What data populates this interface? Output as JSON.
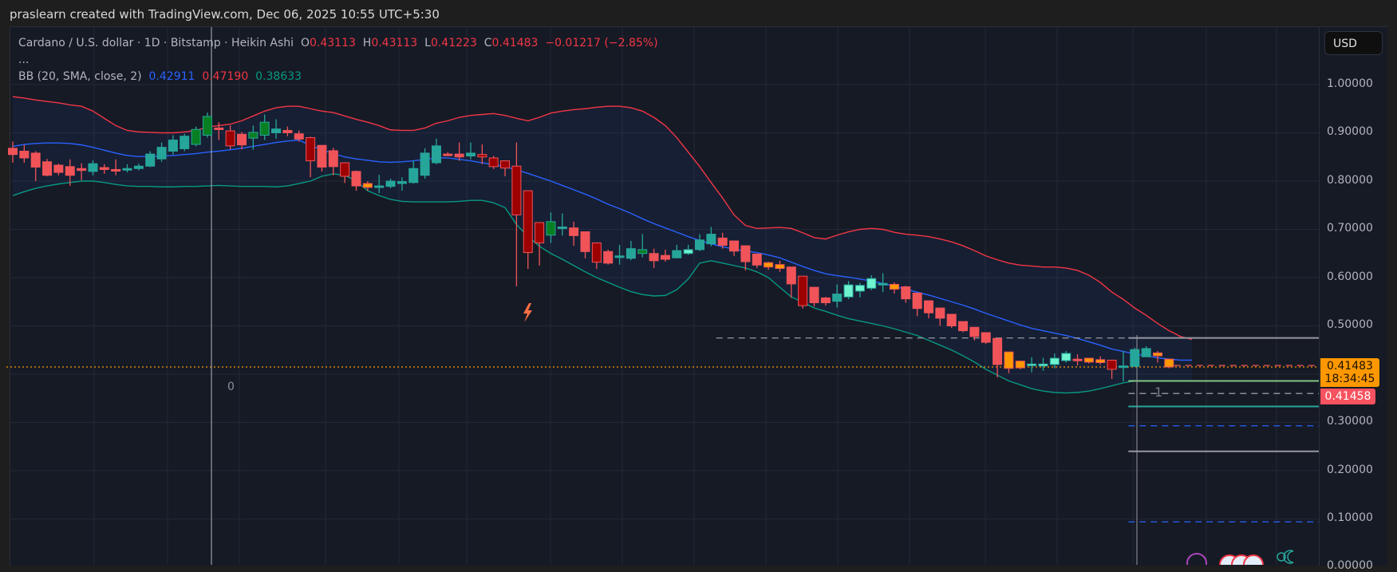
{
  "header": {
    "credit": "praslearn created with TradingView.com, Dec 06, 2025 10:55 UTC+5:30"
  },
  "legend": {
    "symbol_line": "Cardano / U.S. dollar · 1D · Bitstamp · Heikin Ashi",
    "o_label": "O",
    "o_value": "0.43113",
    "h_label": "H",
    "h_value": "0.43113",
    "l_label": "L",
    "l_value": "0.41223",
    "c_label": "C",
    "c_value": "0.41483",
    "change": "−0.01217 (−2.85%)",
    "more": "...",
    "bb_label": "BB (20, SMA, close, 2)",
    "bb_basis": "0.42911",
    "bb_upper": "0.47190",
    "bb_lower": "0.38633"
  },
  "price_axis": {
    "currency_button": "USD",
    "ticks": [
      "1.00000",
      "0.90000",
      "0.80000",
      "0.70000",
      "0.60000",
      "0.50000",
      "0.30000",
      "0.20000",
      "0.10000",
      "0.00000"
    ],
    "last_price": "0.41483",
    "countdown": "18:34:45",
    "bid_price": "0.41458"
  },
  "annotations": {
    "zero_label": "0",
    "bar_marker": "1"
  },
  "colors": {
    "background": "#161a25",
    "grid": "#242837",
    "up": "#26a69a",
    "up_strong": "#087f23",
    "up_light": "#70f4d0",
    "down": "#f05459",
    "down_strong": "#9c0000",
    "neutral": "#ff9800",
    "bb_basis": "#2962ff",
    "bb_upper": "#f23645",
    "bb_lower": "#089981"
  },
  "chart_data": {
    "type": "candlestick",
    "title": "Cardano / U.S. dollar · 1D · Bitstamp · Heikin Ashi",
    "xlabel": "",
    "ylabel": "USD",
    "ylim": [
      0.0,
      1.05
    ],
    "grid": true,
    "indicator": "Bollinger Bands (20, SMA, close, 2)",
    "candles": [
      {
        "o": 0.868,
        "h": 0.882,
        "l": 0.838,
        "c": 0.855,
        "k": "down"
      },
      {
        "o": 0.862,
        "h": 0.875,
        "l": 0.838,
        "c": 0.848,
        "k": "down"
      },
      {
        "o": 0.858,
        "h": 0.862,
        "l": 0.8,
        "c": 0.829,
        "k": "down"
      },
      {
        "o": 0.84,
        "h": 0.846,
        "l": 0.81,
        "c": 0.812,
        "k": "down"
      },
      {
        "o": 0.833,
        "h": 0.836,
        "l": 0.812,
        "c": 0.818,
        "k": "down"
      },
      {
        "o": 0.83,
        "h": 0.845,
        "l": 0.79,
        "c": 0.812,
        "k": "down"
      },
      {
        "o": 0.826,
        "h": 0.837,
        "l": 0.802,
        "c": 0.822,
        "k": "down"
      },
      {
        "o": 0.82,
        "h": 0.843,
        "l": 0.812,
        "c": 0.836,
        "k": "up"
      },
      {
        "o": 0.828,
        "h": 0.835,
        "l": 0.815,
        "c": 0.824,
        "k": "down"
      },
      {
        "o": 0.824,
        "h": 0.845,
        "l": 0.812,
        "c": 0.824,
        "k": "down"
      },
      {
        "o": 0.824,
        "h": 0.835,
        "l": 0.818,
        "c": 0.826,
        "k": "up"
      },
      {
        "o": 0.826,
        "h": 0.836,
        "l": 0.822,
        "c": 0.831,
        "k": "up"
      },
      {
        "o": 0.831,
        "h": 0.862,
        "l": 0.829,
        "c": 0.856,
        "k": "up"
      },
      {
        "o": 0.846,
        "h": 0.88,
        "l": 0.84,
        "c": 0.87,
        "k": "up"
      },
      {
        "o": 0.862,
        "h": 0.895,
        "l": 0.855,
        "c": 0.885,
        "k": "up"
      },
      {
        "o": 0.867,
        "h": 0.898,
        "l": 0.862,
        "c": 0.893,
        "k": "up"
      },
      {
        "o": 0.876,
        "h": 0.913,
        "l": 0.872,
        "c": 0.907,
        "k": "up_strong"
      },
      {
        "o": 0.895,
        "h": 0.942,
        "l": 0.89,
        "c": 0.934,
        "k": "up_strong"
      },
      {
        "o": 0.91,
        "h": 0.922,
        "l": 0.885,
        "c": 0.907,
        "k": "down"
      },
      {
        "o": 0.904,
        "h": 0.915,
        "l": 0.866,
        "c": 0.873,
        "k": "down_strong"
      },
      {
        "o": 0.897,
        "h": 0.902,
        "l": 0.866,
        "c": 0.875,
        "k": "down"
      },
      {
        "o": 0.889,
        "h": 0.915,
        "l": 0.865,
        "c": 0.901,
        "k": "up_strong"
      },
      {
        "o": 0.895,
        "h": 0.938,
        "l": 0.885,
        "c": 0.922,
        "k": "up_strong"
      },
      {
        "o": 0.9,
        "h": 0.928,
        "l": 0.888,
        "c": 0.908,
        "k": "up"
      },
      {
        "o": 0.905,
        "h": 0.913,
        "l": 0.893,
        "c": 0.9,
        "k": "down"
      },
      {
        "o": 0.898,
        "h": 0.905,
        "l": 0.882,
        "c": 0.887,
        "k": "down"
      },
      {
        "o": 0.89,
        "h": 0.892,
        "l": 0.808,
        "c": 0.842,
        "k": "down_strong"
      },
      {
        "o": 0.874,
        "h": 0.874,
        "l": 0.82,
        "c": 0.829,
        "k": "down"
      },
      {
        "o": 0.863,
        "h": 0.869,
        "l": 0.812,
        "c": 0.83,
        "k": "down"
      },
      {
        "o": 0.838,
        "h": 0.838,
        "l": 0.796,
        "c": 0.81,
        "k": "down_strong"
      },
      {
        "o": 0.82,
        "h": 0.822,
        "l": 0.78,
        "c": 0.79,
        "k": "down"
      },
      {
        "o": 0.795,
        "h": 0.8,
        "l": 0.78,
        "c": 0.787,
        "k": "neutral"
      },
      {
        "o": 0.787,
        "h": 0.813,
        "l": 0.775,
        "c": 0.79,
        "k": "up"
      },
      {
        "o": 0.789,
        "h": 0.805,
        "l": 0.785,
        "c": 0.8,
        "k": "up"
      },
      {
        "o": 0.795,
        "h": 0.808,
        "l": 0.78,
        "c": 0.799,
        "k": "up"
      },
      {
        "o": 0.797,
        "h": 0.842,
        "l": 0.795,
        "c": 0.826,
        "k": "up"
      },
      {
        "o": 0.812,
        "h": 0.868,
        "l": 0.805,
        "c": 0.858,
        "k": "up"
      },
      {
        "o": 0.838,
        "h": 0.888,
        "l": 0.835,
        "c": 0.873,
        "k": "up"
      },
      {
        "o": 0.856,
        "h": 0.86,
        "l": 0.855,
        "c": 0.856,
        "k": "down"
      },
      {
        "o": 0.856,
        "h": 0.88,
        "l": 0.842,
        "c": 0.85,
        "k": "down"
      },
      {
        "o": 0.858,
        "h": 0.88,
        "l": 0.845,
        "c": 0.852,
        "k": "up"
      },
      {
        "o": 0.855,
        "h": 0.876,
        "l": 0.835,
        "c": 0.85,
        "k": "down_strong"
      },
      {
        "o": 0.848,
        "h": 0.852,
        "l": 0.825,
        "c": 0.83,
        "k": "down_strong"
      },
      {
        "o": 0.842,
        "h": 0.842,
        "l": 0.81,
        "c": 0.827,
        "k": "down_strong"
      },
      {
        "o": 0.831,
        "h": 0.88,
        "l": 0.582,
        "c": 0.73,
        "k": "down_strong"
      },
      {
        "o": 0.78,
        "h": 0.78,
        "l": 0.618,
        "c": 0.652,
        "k": "down_strong"
      },
      {
        "o": 0.714,
        "h": 0.714,
        "l": 0.625,
        "c": 0.672,
        "k": "down_strong"
      },
      {
        "o": 0.688,
        "h": 0.735,
        "l": 0.672,
        "c": 0.716,
        "k": "up_strong"
      },
      {
        "o": 0.705,
        "h": 0.733,
        "l": 0.687,
        "c": 0.702,
        "k": "up"
      },
      {
        "o": 0.703,
        "h": 0.716,
        "l": 0.666,
        "c": 0.687,
        "k": "down"
      },
      {
        "o": 0.695,
        "h": 0.695,
        "l": 0.64,
        "c": 0.654,
        "k": "down"
      },
      {
        "o": 0.672,
        "h": 0.672,
        "l": 0.618,
        "c": 0.632,
        "k": "down_strong"
      },
      {
        "o": 0.654,
        "h": 0.658,
        "l": 0.627,
        "c": 0.63,
        "k": "down"
      },
      {
        "o": 0.645,
        "h": 0.668,
        "l": 0.627,
        "c": 0.645,
        "k": "up"
      },
      {
        "o": 0.64,
        "h": 0.676,
        "l": 0.636,
        "c": 0.66,
        "k": "up"
      },
      {
        "o": 0.65,
        "h": 0.69,
        "l": 0.642,
        "c": 0.658,
        "k": "up_strong"
      },
      {
        "o": 0.65,
        "h": 0.66,
        "l": 0.62,
        "c": 0.635,
        "k": "down"
      },
      {
        "o": 0.646,
        "h": 0.658,
        "l": 0.633,
        "c": 0.638,
        "k": "down"
      },
      {
        "o": 0.641,
        "h": 0.668,
        "l": 0.64,
        "c": 0.656,
        "k": "up"
      },
      {
        "o": 0.65,
        "h": 0.668,
        "l": 0.647,
        "c": 0.658,
        "k": "up_light"
      },
      {
        "o": 0.658,
        "h": 0.69,
        "l": 0.655,
        "c": 0.678,
        "k": "up"
      },
      {
        "o": 0.67,
        "h": 0.705,
        "l": 0.665,
        "c": 0.69,
        "k": "up"
      },
      {
        "o": 0.682,
        "h": 0.693,
        "l": 0.66,
        "c": 0.667,
        "k": "down"
      },
      {
        "o": 0.676,
        "h": 0.676,
        "l": 0.645,
        "c": 0.655,
        "k": "down"
      },
      {
        "o": 0.666,
        "h": 0.666,
        "l": 0.615,
        "c": 0.633,
        "k": "down"
      },
      {
        "o": 0.649,
        "h": 0.649,
        "l": 0.62,
        "c": 0.626,
        "k": "down"
      },
      {
        "o": 0.631,
        "h": 0.633,
        "l": 0.616,
        "c": 0.622,
        "k": "neutral"
      },
      {
        "o": 0.627,
        "h": 0.635,
        "l": 0.612,
        "c": 0.619,
        "k": "neutral"
      },
      {
        "o": 0.622,
        "h": 0.622,
        "l": 0.558,
        "c": 0.587,
        "k": "down"
      },
      {
        "o": 0.603,
        "h": 0.603,
        "l": 0.536,
        "c": 0.542,
        "k": "down_strong"
      },
      {
        "o": 0.58,
        "h": 0.58,
        "l": 0.54,
        "c": 0.548,
        "k": "down"
      },
      {
        "o": 0.558,
        "h": 0.56,
        "l": 0.542,
        "c": 0.548,
        "k": "down"
      },
      {
        "o": 0.551,
        "h": 0.586,
        "l": 0.538,
        "c": 0.566,
        "k": "up"
      },
      {
        "o": 0.56,
        "h": 0.593,
        "l": 0.555,
        "c": 0.585,
        "k": "up_light"
      },
      {
        "o": 0.572,
        "h": 0.589,
        "l": 0.559,
        "c": 0.584,
        "k": "up_light"
      },
      {
        "o": 0.578,
        "h": 0.605,
        "l": 0.574,
        "c": 0.598,
        "k": "up_light"
      },
      {
        "o": 0.588,
        "h": 0.609,
        "l": 0.57,
        "c": 0.588,
        "k": "up"
      },
      {
        "o": 0.586,
        "h": 0.59,
        "l": 0.567,
        "c": 0.576,
        "k": "neutral"
      },
      {
        "o": 0.581,
        "h": 0.583,
        "l": 0.548,
        "c": 0.556,
        "k": "down"
      },
      {
        "o": 0.568,
        "h": 0.568,
        "l": 0.52,
        "c": 0.536,
        "k": "down"
      },
      {
        "o": 0.552,
        "h": 0.552,
        "l": 0.516,
        "c": 0.527,
        "k": "down"
      },
      {
        "o": 0.537,
        "h": 0.537,
        "l": 0.5,
        "c": 0.516,
        "k": "down"
      },
      {
        "o": 0.524,
        "h": 0.524,
        "l": 0.496,
        "c": 0.5,
        "k": "down"
      },
      {
        "o": 0.509,
        "h": 0.509,
        "l": 0.487,
        "c": 0.49,
        "k": "down"
      },
      {
        "o": 0.497,
        "h": 0.497,
        "l": 0.47,
        "c": 0.478,
        "k": "down"
      },
      {
        "o": 0.486,
        "h": 0.486,
        "l": 0.463,
        "c": 0.466,
        "k": "down"
      },
      {
        "o": 0.474,
        "h": 0.474,
        "l": 0.393,
        "c": 0.42,
        "k": "down"
      },
      {
        "o": 0.446,
        "h": 0.446,
        "l": 0.402,
        "c": 0.412,
        "k": "neutral"
      },
      {
        "o": 0.427,
        "h": 0.428,
        "l": 0.41,
        "c": 0.413,
        "k": "neutral"
      },
      {
        "o": 0.419,
        "h": 0.435,
        "l": 0.404,
        "c": 0.421,
        "k": "up_light"
      },
      {
        "o": 0.417,
        "h": 0.434,
        "l": 0.407,
        "c": 0.421,
        "k": "up_light"
      },
      {
        "o": 0.42,
        "h": 0.443,
        "l": 0.412,
        "c": 0.433,
        "k": "up_light"
      },
      {
        "o": 0.428,
        "h": 0.448,
        "l": 0.424,
        "c": 0.443,
        "k": "up_light"
      },
      {
        "o": 0.431,
        "h": 0.441,
        "l": 0.418,
        "c": 0.429,
        "k": "down"
      },
      {
        "o": 0.433,
        "h": 0.433,
        "l": 0.422,
        "c": 0.425,
        "k": "neutral"
      },
      {
        "o": 0.43,
        "h": 0.437,
        "l": 0.42,
        "c": 0.424,
        "k": "neutral"
      },
      {
        "o": 0.429,
        "h": 0.429,
        "l": 0.39,
        "c": 0.41,
        "k": "down_strong"
      },
      {
        "o": 0.417,
        "h": 0.448,
        "l": 0.385,
        "c": 0.417,
        "k": "up"
      },
      {
        "o": 0.416,
        "h": 0.455,
        "l": 0.416,
        "c": 0.451,
        "k": "up"
      },
      {
        "o": 0.436,
        "h": 0.458,
        "l": 0.436,
        "c": 0.453,
        "k": "up"
      },
      {
        "o": 0.444,
        "h": 0.448,
        "l": 0.424,
        "c": 0.438,
        "k": "neutral"
      },
      {
        "o": 0.43113,
        "h": 0.43113,
        "l": 0.41223,
        "c": 0.41483,
        "k": "neutral"
      }
    ],
    "bb_basis": [
      0.872,
      0.876,
      0.878,
      0.879,
      0.879,
      0.878,
      0.875,
      0.87,
      0.864,
      0.858,
      0.853,
      0.851,
      0.851,
      0.852,
      0.853,
      0.855,
      0.857,
      0.86,
      0.862,
      0.865,
      0.868,
      0.872,
      0.876,
      0.88,
      0.883,
      0.885,
      0.874,
      0.865,
      0.857,
      0.85,
      0.846,
      0.843,
      0.84,
      0.839,
      0.84,
      0.842,
      0.845,
      0.848,
      0.848,
      0.845,
      0.842,
      0.838,
      0.834,
      0.83,
      0.823,
      0.816,
      0.808,
      0.8,
      0.791,
      0.782,
      0.773,
      0.763,
      0.752,
      0.743,
      0.733,
      0.722,
      0.712,
      0.703,
      0.694,
      0.685,
      0.677,
      0.67,
      0.664,
      0.659,
      0.655,
      0.652,
      0.647,
      0.641,
      0.632,
      0.623,
      0.615,
      0.608,
      0.604,
      0.601,
      0.597,
      0.593,
      0.588,
      0.582,
      0.576,
      0.57,
      0.564,
      0.557,
      0.55,
      0.543,
      0.535,
      0.526,
      0.518,
      0.51,
      0.502,
      0.495,
      0.49,
      0.485,
      0.48,
      0.474,
      0.467,
      0.46,
      0.452,
      0.447,
      0.442,
      0.438,
      0.434,
      0.431,
      0.429,
      0.42911
    ],
    "bb_upper": [
      0.975,
      0.972,
      0.968,
      0.965,
      0.962,
      0.958,
      0.955,
      0.945,
      0.93,
      0.915,
      0.905,
      0.902,
      0.901,
      0.9,
      0.9,
      0.902,
      0.905,
      0.912,
      0.915,
      0.918,
      0.925,
      0.935,
      0.945,
      0.952,
      0.955,
      0.955,
      0.95,
      0.945,
      0.942,
      0.935,
      0.928,
      0.922,
      0.915,
      0.906,
      0.905,
      0.905,
      0.91,
      0.92,
      0.925,
      0.932,
      0.936,
      0.938,
      0.94,
      0.936,
      0.93,
      0.925,
      0.932,
      0.941,
      0.945,
      0.948,
      0.95,
      0.953,
      0.955,
      0.955,
      0.952,
      0.945,
      0.932,
      0.915,
      0.89,
      0.86,
      0.83,
      0.797,
      0.765,
      0.73,
      0.708,
      0.702,
      0.703,
      0.704,
      0.702,
      0.693,
      0.683,
      0.68,
      0.688,
      0.695,
      0.7,
      0.702,
      0.7,
      0.694,
      0.69,
      0.688,
      0.685,
      0.68,
      0.674,
      0.666,
      0.656,
      0.645,
      0.637,
      0.63,
      0.626,
      0.624,
      0.622,
      0.622,
      0.62,
      0.615,
      0.605,
      0.59,
      0.57,
      0.555,
      0.537,
      0.522,
      0.505,
      0.49,
      0.478,
      0.4719
    ],
    "bb_lower": [
      0.77,
      0.778,
      0.785,
      0.79,
      0.794,
      0.797,
      0.8,
      0.8,
      0.797,
      0.793,
      0.79,
      0.789,
      0.789,
      0.788,
      0.788,
      0.789,
      0.789,
      0.79,
      0.791,
      0.79,
      0.789,
      0.789,
      0.789,
      0.788,
      0.79,
      0.795,
      0.8,
      0.81,
      0.815,
      0.812,
      0.8,
      0.78,
      0.77,
      0.762,
      0.758,
      0.757,
      0.757,
      0.757,
      0.757,
      0.758,
      0.76,
      0.76,
      0.755,
      0.745,
      0.71,
      0.685,
      0.665,
      0.65,
      0.638,
      0.625,
      0.612,
      0.6,
      0.59,
      0.58,
      0.571,
      0.565,
      0.562,
      0.563,
      0.575,
      0.597,
      0.63,
      0.635,
      0.63,
      0.625,
      0.62,
      0.612,
      0.6,
      0.58,
      0.56,
      0.549,
      0.537,
      0.53,
      0.522,
      0.515,
      0.51,
      0.505,
      0.5,
      0.494,
      0.487,
      0.48,
      0.47,
      0.46,
      0.45,
      0.438,
      0.425,
      0.41,
      0.398,
      0.386,
      0.378,
      0.37,
      0.365,
      0.362,
      0.361,
      0.362,
      0.365,
      0.37,
      0.376,
      0.382,
      0.386,
      0.386,
      0.386,
      0.386,
      0.386,
      0.38633
    ],
    "price_lines": [
      {
        "price": 0.475,
        "style": "dashed",
        "color": "#9598a1",
        "from_index": 62
      },
      {
        "price": 0.475,
        "style": "solid",
        "color": "#9598a1",
        "from_index": 98
      },
      {
        "price": 0.418,
        "style": "dashed",
        "color": "#f05459",
        "from_index": 102
      },
      {
        "price": 0.41483,
        "style": "dotted",
        "color": "#ff9800",
        "from_index": 0
      },
      {
        "price": 0.386,
        "style": "solid",
        "color": "#81c784",
        "from_index": 98
      },
      {
        "price": 0.36,
        "style": "dashed",
        "color": "#b2b5be",
        "from_index": 98
      },
      {
        "price": 0.333,
        "style": "solid",
        "color": "#26a69a",
        "from_index": 98
      },
      {
        "price": 0.293,
        "style": "dashed",
        "color": "#2962ff",
        "from_index": 98
      },
      {
        "price": 0.24,
        "style": "solid",
        "color": "#9598a1",
        "from_index": 98
      },
      {
        "price": 0.094,
        "style": "dashed",
        "color": "#2962ff",
        "from_index": 98
      }
    ]
  }
}
